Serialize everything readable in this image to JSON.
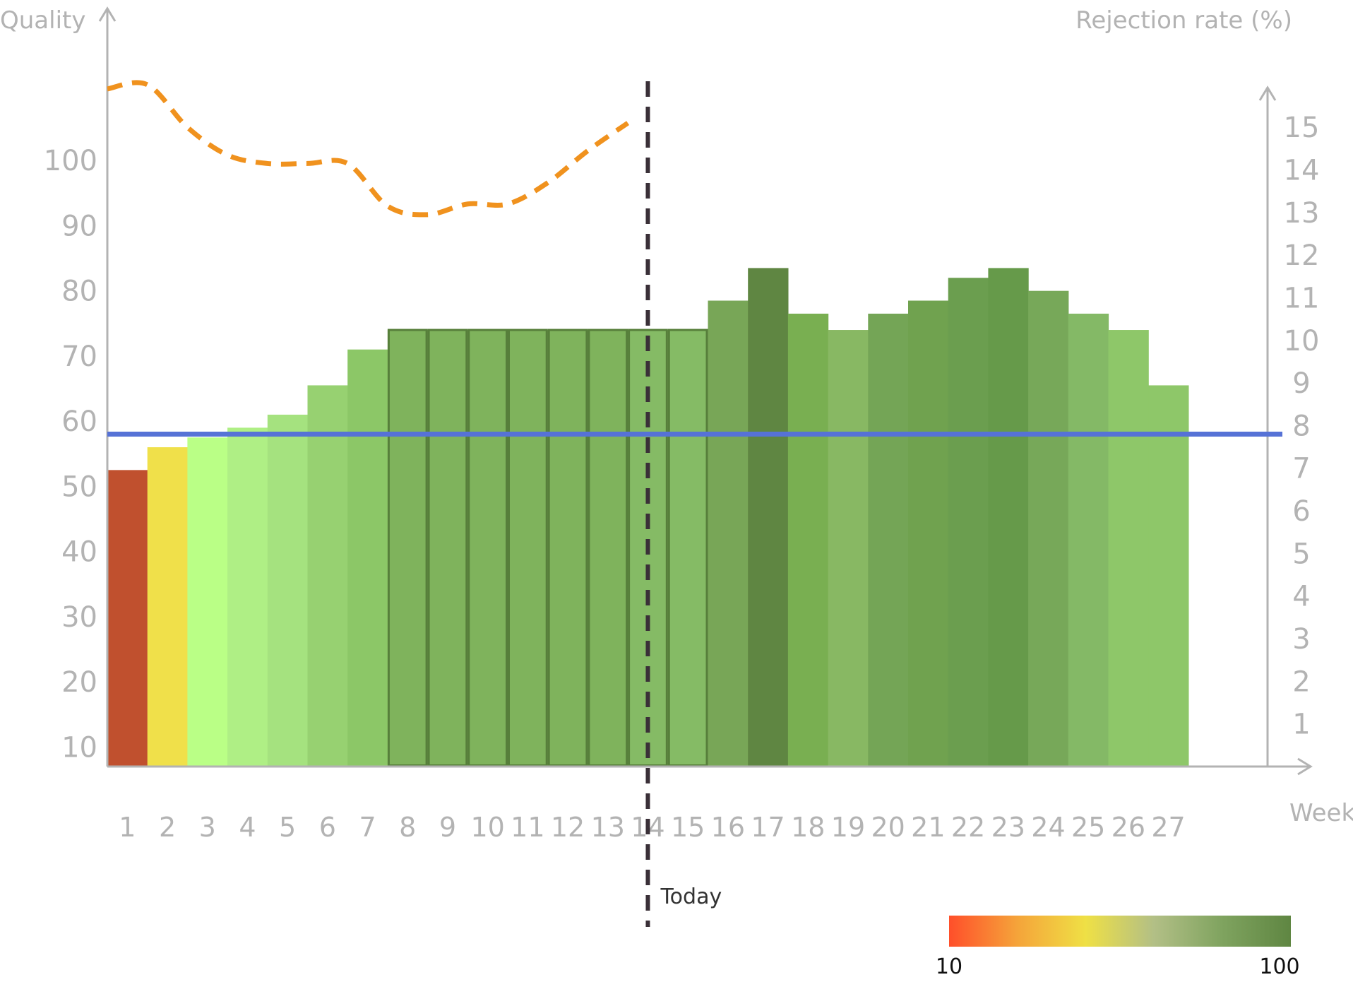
{
  "chart_data": {
    "type": "bar",
    "left_axis_title": "Quality",
    "right_axis_title": "Rejection rate (%)",
    "x_axis_title": "Week",
    "categories": [
      "1",
      "2",
      "3",
      "4",
      "5",
      "6",
      "7",
      "8",
      "9",
      "10",
      "11",
      "12",
      "13",
      "14",
      "15",
      "16",
      "17",
      "18",
      "19",
      "20",
      "21",
      "22",
      "23",
      "24",
      "25",
      "26",
      "27"
    ],
    "quality_values": [
      52.5,
      56,
      57.5,
      59,
      61,
      65.5,
      71,
      74,
      74,
      74,
      74,
      74,
      74,
      74,
      74,
      78.5,
      83.5,
      76.5,
      74,
      76.5,
      78.5,
      82,
      83.5,
      80,
      76.5,
      74,
      65.5
    ],
    "bar_colors": [
      "#c0502e",
      "#f0e04a",
      "#baff86",
      "#afef85",
      "#a5e27f",
      "#97d171",
      "#8cc767",
      "#7fb35c",
      "#7fb35c",
      "#7fb35c",
      "#7fb35c",
      "#7fb35c",
      "#7fb35c",
      "#85bb65",
      "#85bb65",
      "#78a657",
      "#5f8642",
      "#79af51",
      "#88b863",
      "#74a556",
      "#70a24f",
      "#6b9e4f",
      "#669a4a",
      "#77a859",
      "#84b966",
      "#8ec769",
      "#8ec769"
    ],
    "selected_weeks": [
      "8",
      "9",
      "10",
      "11",
      "12",
      "13",
      "14",
      "15"
    ],
    "left_ticks": [
      10,
      20,
      30,
      40,
      50,
      60,
      70,
      80,
      90,
      100
    ],
    "left_ylim": [
      7,
      110
    ],
    "right_ticks": [
      1,
      2,
      3,
      4,
      5,
      6,
      7,
      8,
      9,
      10,
      11,
      12,
      13,
      14,
      15
    ],
    "right_ylim": [
      0,
      15.5
    ],
    "rejection_rate_series": {
      "x": [
        1,
        2,
        3,
        4,
        5,
        6,
        7,
        8,
        9,
        10,
        11,
        12,
        13,
        14
      ],
      "values": [
        15.9,
        16,
        15,
        14.35,
        14.15,
        14.15,
        14.15,
        13.15,
        12.95,
        13.2,
        13.2,
        13.7,
        14.45,
        15.1
      ],
      "color": "#f0921e",
      "style": "dashed"
    },
    "threshold_line": {
      "rejection_rate_value": 7.8,
      "color": "#5672d6"
    },
    "today": {
      "label": "Today",
      "position": 13.5
    },
    "color_scale": {
      "min_label": "10",
      "max_label": "100",
      "stops": [
        "#ff4f2a",
        "#f5a43a",
        "#efe045",
        "#b2bf86",
        "#7fa35f",
        "#5f8642"
      ]
    },
    "grid": false,
    "legend": "none"
  }
}
